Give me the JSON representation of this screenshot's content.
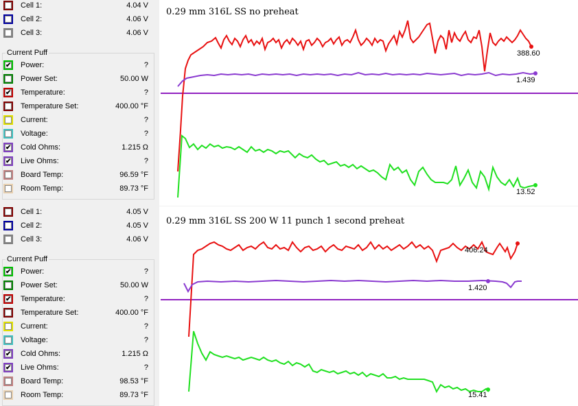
{
  "panels": [
    {
      "cells": [
        {
          "label": "Cell 1:",
          "value": "4.04 V",
          "color": "#800000",
          "checked": false
        },
        {
          "label": "Cell 2:",
          "value": "4.06 V",
          "color": "#0000a0",
          "checked": false
        },
        {
          "label": "Cell 3:",
          "value": "4.06 V",
          "color": "#808080",
          "checked": false
        }
      ],
      "group_title": "Current Puff",
      "params": [
        {
          "label": "Power:",
          "value": "?",
          "color": "#00c000",
          "checked": true
        },
        {
          "label": "Power Set:",
          "value": "50.00 W",
          "color": "#008000",
          "checked": false
        },
        {
          "label": "Temperature:",
          "value": "?",
          "color": "#c00000",
          "checked": true
        },
        {
          "label": "Temperature Set:",
          "value": "400.00 °F",
          "color": "#800000",
          "checked": false
        },
        {
          "label": "Current:",
          "value": "?",
          "color": "#e0e000",
          "checked": false
        },
        {
          "label": "Voltage:",
          "value": "?",
          "color": "#40c0c0",
          "checked": false
        },
        {
          "label": "Cold Ohms:",
          "value": "1.215 Ω",
          "color": "#8040c0",
          "checked": true
        },
        {
          "label": "Live Ohms:",
          "value": "?",
          "color": "#8040c0",
          "checked": true
        },
        {
          "label": "Board Temp:",
          "value": "96.59 °F",
          "color": "#c08080",
          "checked": false
        },
        {
          "label": "Room Temp:",
          "value": "89.73 °F",
          "color": "#e8d0b0",
          "checked": false
        }
      ],
      "chart": {
        "title": "0.29 mm  316L SS no preheat",
        "end_labels": {
          "temperature": "388.60",
          "live_ohms": "1.439",
          "power": "13.52"
        }
      }
    },
    {
      "cells": [
        {
          "label": "Cell 1:",
          "value": "4.05 V",
          "color": "#800000",
          "checked": false
        },
        {
          "label": "Cell 2:",
          "value": "4.05 V",
          "color": "#0000a0",
          "checked": false
        },
        {
          "label": "Cell 3:",
          "value": "4.06 V",
          "color": "#808080",
          "checked": false
        }
      ],
      "group_title": "Current Puff",
      "params": [
        {
          "label": "Power:",
          "value": "?",
          "color": "#00c000",
          "checked": true
        },
        {
          "label": "Power Set:",
          "value": "50.00 W",
          "color": "#008000",
          "checked": false
        },
        {
          "label": "Temperature:",
          "value": "?",
          "color": "#c00000",
          "checked": true
        },
        {
          "label": "Temperature Set:",
          "value": "400.00 °F",
          "color": "#800000",
          "checked": false
        },
        {
          "label": "Current:",
          "value": "?",
          "color": "#e0e000",
          "checked": false
        },
        {
          "label": "Voltage:",
          "value": "?",
          "color": "#40c0c0",
          "checked": false
        },
        {
          "label": "Cold Ohms:",
          "value": "1.215 Ω",
          "color": "#8040c0",
          "checked": true
        },
        {
          "label": "Live Ohms:",
          "value": "?",
          "color": "#8040c0",
          "checked": true
        },
        {
          "label": "Board Temp:",
          "value": "98.53 °F",
          "color": "#c08080",
          "checked": false
        },
        {
          "label": "Room Temp:",
          "value": "89.73 °F",
          "color": "#e8d0b0",
          "checked": false
        }
      ],
      "chart": {
        "title": "0.29 mm 316L SS 200 W 11 punch 1 second preheat",
        "end_labels": {
          "temperature": "406.24",
          "live_ohms": "1.420",
          "power": "15.41"
        }
      }
    }
  ],
  "colors": {
    "temperature_line": "#e81010",
    "live_ohms_line": "#8a3ad0",
    "temp_set_line": "#9020c0",
    "power_line": "#20e020"
  }
}
